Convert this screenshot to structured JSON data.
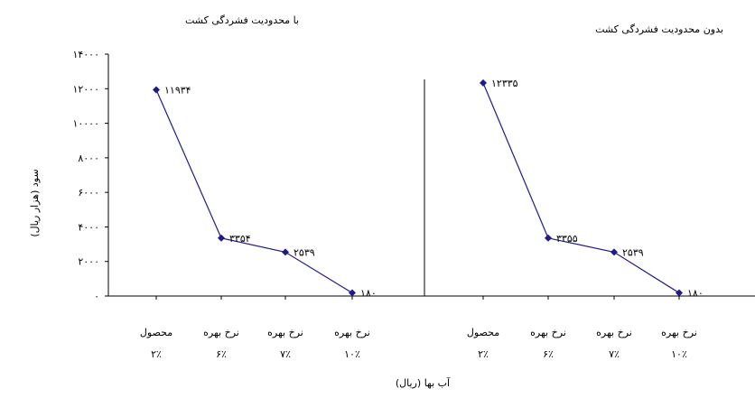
{
  "chart_data": {
    "type": "line",
    "ylabel": "سود (هزار ریال)",
    "xlabel": "آب بها (ریال)",
    "ylim": [
      0,
      14000
    ],
    "y_ticks": [
      0,
      2000,
      4000,
      6000,
      8000,
      10000,
      12000,
      14000
    ],
    "y_tick_labels": [
      "۰",
      "۲۰۰۰",
      "۴۰۰۰",
      "۶۰۰۰",
      "۸۰۰۰",
      "۱۰۰۰۰",
      "۱۲۰۰۰",
      "۱۴۰۰۰"
    ],
    "categories": [
      {
        "line1": "محصول",
        "line2": "۲٪"
      },
      {
        "line1": "نرخ بهره",
        "line2": "۶٪"
      },
      {
        "line1": "نرخ بهره",
        "line2": "۷٪"
      },
      {
        "line1": "نرخ بهره",
        "line2": "۱۰٪"
      }
    ],
    "grid": false,
    "series_color": "#1f1a8c",
    "panels": [
      {
        "title": "با محدودیت فشردگی کشت",
        "values": [
          11934,
          3354,
          2539,
          180
        ],
        "value_labels": [
          "۱۱۹۳۴",
          "۳۳۵۴",
          "۲۵۳۹",
          "۱۸۰"
        ]
      },
      {
        "title": "بدون محدودیت فشردگی کشت",
        "values": [
          12335,
          3355,
          2539,
          180
        ],
        "value_labels": [
          "۱۲۳۳۵",
          "۳۳۵۵",
          "۲۵۳۹",
          "۱۸۰"
        ]
      }
    ]
  }
}
